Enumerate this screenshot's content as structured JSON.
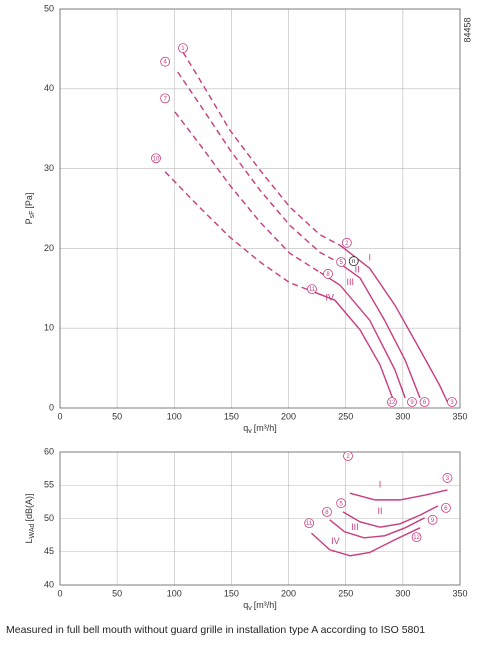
{
  "chart_id": "84458",
  "caption": "Measured in full bell mouth without guard grille in installation type A according to ISO 5801",
  "chart_data": [
    {
      "type": "line",
      "color": "#c93c80",
      "grid": true,
      "xlabel": {
        "main": "q",
        "sub": "v",
        "unit": "[m³/h]"
      },
      "ylabel": {
        "main": "P",
        "sub": "sF",
        "unit": "[Pa]"
      },
      "xlim": [
        0,
        350
      ],
      "ylim": [
        0,
        50
      ],
      "xticks": [
        0,
        50,
        100,
        150,
        200,
        250,
        300,
        350
      ],
      "yticks": [
        0,
        10,
        20,
        30,
        40,
        50
      ],
      "series": [
        {
          "name": "I",
          "segments": [
            {
              "style": "dashed",
              "x": [
                107.6,
                122.5,
                148.7,
                175,
                201,
                227.5,
                245
              ],
              "values": [
                44.6,
                41.1,
                34.8,
                29.8,
                25.2,
                21.7,
                20.4
              ]
            },
            {
              "style": "solid",
              "x": [
                245,
                271,
                293,
                315,
                332,
                339
              ],
              "values": [
                20.4,
                17.5,
                12.9,
                7.3,
                2.9,
                0.75
              ]
            }
          ]
        },
        {
          "name": "II",
          "segments": [
            {
              "style": "dashed",
              "x": [
                103,
                122.5,
                149,
                175,
                201,
                227.5,
                243
              ],
              "values": [
                42.1,
                38,
                32.3,
                27.3,
                22.9,
                19.5,
                18.3
              ]
            },
            {
              "style": "solid",
              "x": [
                243,
                262.5,
                284,
                302,
                315
              ],
              "values": [
                18.3,
                16.3,
                11,
                6,
                1.25
              ]
            }
          ]
        },
        {
          "name": "III",
          "segments": [
            {
              "style": "dashed",
              "x": [
                100.6,
                122.5,
                148.7,
                175,
                201,
                227.5
              ],
              "values": [
                37.1,
                33,
                27.9,
                23.3,
                19.4,
                17
              ]
            },
            {
              "style": "solid",
              "x": [
                227.5,
                245,
                271,
                293,
                302
              ],
              "values": [
                17,
                15.4,
                11,
                4.8,
                1.25
              ]
            }
          ]
        },
        {
          "name": "IV",
          "segments": [
            {
              "style": "dashed",
              "x": [
                92,
                122.5,
                148.7,
                175,
                201,
                223
              ],
              "values": [
                29.6,
                25.1,
                21.4,
                18.3,
                15.7,
                14.5
              ]
            },
            {
              "style": "solid",
              "x": [
                223,
                240.6,
                262.5,
                280,
                291
              ],
              "values": [
                14.5,
                13.5,
                9.8,
                5.4,
                1.25
              ]
            }
          ]
        }
      ],
      "markers": [
        {
          "label": "1",
          "x": 107.6,
          "y": 45.1
        },
        {
          "label": "2",
          "x": 251,
          "y": 20.7
        },
        {
          "label": "3",
          "x": 343,
          "y": 0.75
        },
        {
          "label": "4",
          "x": 92,
          "y": 43.4
        },
        {
          "label": "5",
          "x": 246,
          "y": 18.3
        },
        {
          "label": "6",
          "x": 319,
          "y": 0.75
        },
        {
          "label": "7",
          "x": 92,
          "y": 38.8
        },
        {
          "label": "8",
          "x": 234.5,
          "y": 16.8
        },
        {
          "label": "9",
          "x": 308,
          "y": 0.75
        },
        {
          "label": "10",
          "x": 84,
          "y": 31.3
        },
        {
          "label": "11",
          "x": 220.5,
          "y": 14.9
        },
        {
          "label": "12",
          "x": 290.5,
          "y": 0.75
        },
        {
          "label": "n",
          "x": 257,
          "y": 18.4
        }
      ]
    },
    {
      "type": "line",
      "color": "#c93c80",
      "grid": true,
      "xlabel": {
        "main": "q",
        "sub": "v",
        "unit": "[m³/h]"
      },
      "ylabel": {
        "main": "L",
        "sub": "WAd",
        "unit": "[dB(A)]"
      },
      "xlim": [
        0,
        350
      ],
      "ylim": [
        40,
        60
      ],
      "xticks": [
        0,
        50,
        100,
        150,
        200,
        250,
        300,
        350
      ],
      "yticks": [
        40,
        45,
        50,
        55,
        60
      ],
      "series": [
        {
          "name": "I",
          "segments": [
            {
              "style": "solid",
              "x": [
                253.7,
                275.6,
                297.5,
                319,
                339
              ],
              "values": [
                53.8,
                52.8,
                52.8,
                53.5,
                54.3
              ]
            }
          ]
        },
        {
          "name": "II",
          "segments": [
            {
              "style": "solid",
              "x": [
                247.6,
                262.5,
                280,
                297.5,
                315,
                330.7
              ],
              "values": [
                51,
                49.5,
                48.7,
                49.2,
                50.5,
                51.9
              ]
            }
          ]
        },
        {
          "name": "III",
          "segments": [
            {
              "style": "solid",
              "x": [
                236,
                249,
                266,
                284,
                302,
                319
              ],
              "values": [
                49.8,
                48,
                47.1,
                47.4,
                48.6,
                50.1
              ]
            }
          ]
        },
        {
          "name": "IV",
          "segments": [
            {
              "style": "solid",
              "x": [
                220,
                236,
                254,
                271,
                293,
                315
              ],
              "values": [
                47.8,
                45.3,
                44.4,
                44.9,
                46.8,
                48.6
              ]
            }
          ]
        }
      ],
      "markers": [
        {
          "label": "2",
          "x": 252,
          "y": 59.4
        },
        {
          "label": "3",
          "x": 339,
          "y": 56.1
        },
        {
          "label": "5",
          "x": 246,
          "y": 52.3
        },
        {
          "label": "6",
          "x": 337.7,
          "y": 51.6
        },
        {
          "label": "8",
          "x": 233.6,
          "y": 51
        },
        {
          "label": "9",
          "x": 326,
          "y": 49.8
        },
        {
          "label": "11",
          "x": 218,
          "y": 49.3
        },
        {
          "label": "12",
          "x": 312,
          "y": 47.2
        }
      ]
    }
  ]
}
